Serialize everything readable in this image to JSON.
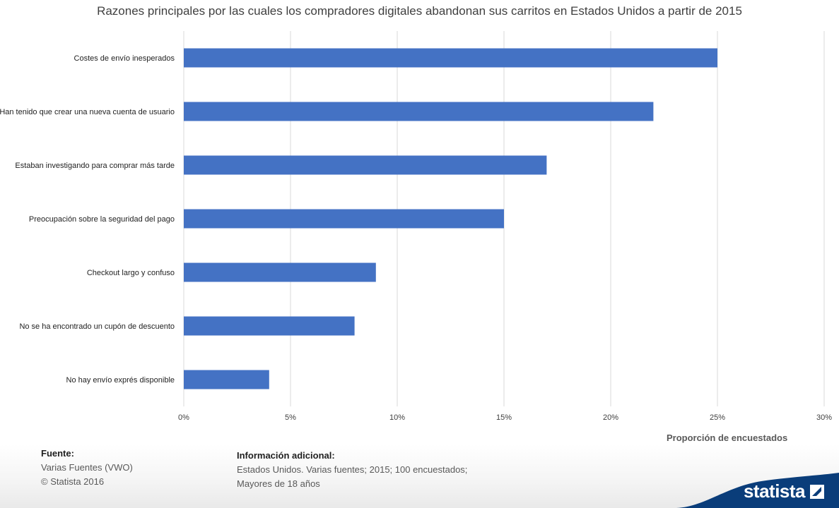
{
  "chart_data": {
    "type": "bar",
    "orientation": "horizontal",
    "title": "Razones principales por las cuales los compradores digitales abandonan sus carritos en Estados Unidos a partir de 2015",
    "xlabel": "Proporción  de encuestados",
    "ylabel": "",
    "categories": [
      "Costes de envío inesperados",
      "Han tenido que crear una nueva cuenta de usuario",
      "Estaban investigando para comprar más tarde",
      "Preocupación sobre la seguridad del pago",
      "Checkout largo y confuso",
      "No se ha encontrado un cupón de descuento",
      "No hay envío exprés disponible"
    ],
    "values": [
      25,
      22,
      17,
      15,
      9,
      8,
      4
    ],
    "xlim": [
      0,
      30
    ],
    "ticks": [
      0,
      5,
      10,
      15,
      20,
      25,
      30
    ],
    "tick_labels": [
      "0%",
      "5%",
      "10%",
      "15%",
      "20%",
      "25%",
      "30%"
    ],
    "bar_color": "#4472c4",
    "grid": true
  },
  "footer": {
    "source_heading": "Fuente:",
    "source_line1": "Varias Fuentes (VWO)",
    "source_line2": "© Statista 2016",
    "info_heading": "Información adicional:",
    "info_line1": "Estados Unidos. Varias fuentes; 2015; 100 encuestados;",
    "info_line2": "Mayores de 18 años"
  },
  "brand": {
    "name": "statista",
    "icon": "statista-logo-icon",
    "color": "#0a3d7a"
  }
}
